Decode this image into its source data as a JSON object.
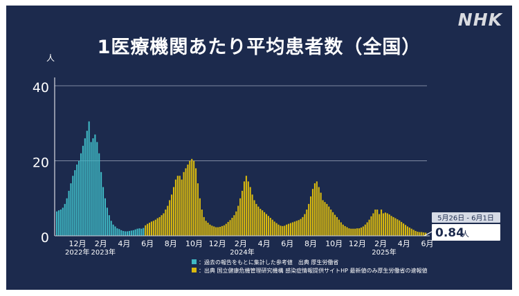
{
  "header": {
    "title": "1医療機関あたり平均患者数（全国）",
    "logo": "NHK"
  },
  "colors": {
    "background": "#1c2a4d",
    "teal": "#3fb8c4",
    "yellow": "#d9b90f",
    "grid": "#7f8aa3",
    "text": "#ffffff"
  },
  "chart_data": {
    "type": "bar",
    "ylabel": "人",
    "ylim": [
      0,
      40
    ],
    "yticks": [
      0,
      20,
      40
    ],
    "grid": true,
    "x_month_ticks": [
      "12月",
      "2月",
      "4月",
      "6月",
      "8月",
      "10月",
      "12月",
      "2月",
      "4月",
      "6月",
      "8月",
      "10月",
      "12月",
      "2月",
      "4月",
      "6月"
    ],
    "x_year_labels": [
      "2022年",
      "2023年",
      "2024年",
      "2025年"
    ],
    "series": [
      {
        "name": "過去の報告をもとに集計した参考値　出典 厚生労働省",
        "color": "#3fb8c4",
        "values": [
          6.5,
          6.8,
          7,
          7.5,
          8.5,
          10,
          12,
          14,
          16,
          17.5,
          19,
          20,
          22,
          24,
          26,
          28,
          30.5,
          25,
          26,
          27,
          25,
          22,
          17,
          13,
          10,
          7.5,
          5.5,
          4,
          3,
          2.5,
          2,
          1.8,
          1.5,
          1.3,
          1.2,
          1.2,
          1.3,
          1.4,
          1.5,
          1.7,
          1.9,
          2,
          1.9,
          2.1
        ]
      },
      {
        "name": "出典 国立健康危機管理研究機構 感染症情報提供サイトHP 最新値のみ厚生労働省の速報値",
        "color": "#d9b90f",
        "values": [
          2.8,
          3.2,
          3.5,
          3.8,
          4,
          4.3,
          4.7,
          5,
          5.5,
          6,
          7,
          8,
          9.5,
          11,
          13,
          15,
          16,
          16,
          15,
          17,
          18,
          19,
          20,
          20.5,
          20,
          18,
          14,
          10,
          7,
          5,
          4,
          3.5,
          3,
          2.7,
          2.5,
          2.3,
          2.3,
          2.4,
          2.6,
          2.8,
          3.2,
          3.7,
          4.2,
          4.8,
          5.5,
          6.5,
          8,
          10,
          12,
          14.5,
          16,
          14.5,
          13,
          11,
          9.5,
          8.5,
          7.8,
          7.2,
          6.8,
          6.3,
          5.8,
          5.3,
          4.8,
          4.3,
          3.8,
          3.4,
          3,
          2.7,
          2.6,
          2.7,
          3,
          3.2,
          3.4,
          3.6,
          3.8,
          4,
          4.2,
          4.5,
          5,
          5.8,
          7,
          8.5,
          10.5,
          12.5,
          14,
          14.5,
          13,
          11.5,
          9.5,
          9,
          8.5,
          7.8,
          7,
          6.3,
          5.6,
          5,
          4.3,
          3.6,
          3,
          2.6,
          2.3,
          2,
          1.9,
          1.9,
          1.9,
          2,
          2,
          2.2,
          2.5,
          3,
          3.6,
          4.3,
          5.2,
          6,
          7,
          7,
          5.8,
          7,
          6,
          6.2,
          6,
          5.7,
          5.3,
          5,
          4.7,
          4.4,
          4.1,
          3.7,
          3.3,
          2.9,
          2.5,
          2.2,
          1.9,
          1.6,
          1.3,
          1.1,
          1,
          1,
          0.9,
          0.84
        ]
      }
    ],
    "annotation": {
      "period": "5月26日 - 6月1日",
      "value": "0.84",
      "unit": "人"
    }
  }
}
